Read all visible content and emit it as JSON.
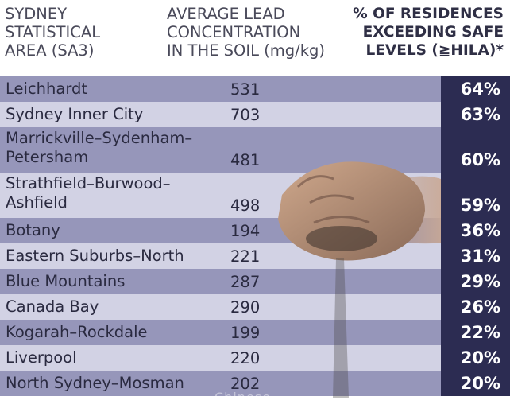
{
  "header": {
    "col1": "SYDNEY\nSTATISTICAL\nAREA (SA3)",
    "col2": "AVERAGE LEAD\nCONCENTRATION\nIN THE SOIL (mg/kg)",
    "col3": "% OF RESIDENCES\nEXCEEDING SAFE\nLEVELS (≧HILA)*"
  },
  "rows": [
    {
      "name": "Leichhardt",
      "value": "531",
      "percent": "64%"
    },
    {
      "name": "Sydney Inner City",
      "value": "703",
      "percent": "63%"
    },
    {
      "name": "Marrickville–Sydenham–\nPetersham",
      "value": "481",
      "percent": "60%"
    },
    {
      "name": "Strathfield–Burwood–\nAshfield",
      "value": "498",
      "percent": "59%"
    },
    {
      "name": "Botany",
      "value": "194",
      "percent": "36%"
    },
    {
      "name": "Eastern Suburbs–North",
      "value": "221",
      "percent": "31%"
    },
    {
      "name": "Blue Mountains",
      "value": "287",
      "percent": "29%"
    },
    {
      "name": "Canada Bay",
      "value": "290",
      "percent": "26%"
    },
    {
      "name": "Kogarah–Rockdale",
      "value": "199",
      "percent": "22%"
    },
    {
      "name": "Liverpool",
      "value": "220",
      "percent": "20%"
    },
    {
      "name": "North Sydney–Mosman",
      "value": "202",
      "percent": "20%"
    }
  ],
  "watermark": "Chinese",
  "colors": {
    "band_dark": "#9696ba",
    "band_light": "#d2d2e4",
    "percent_cell": "#2c2c52"
  },
  "photo_icon": "hands-holding-soil-photo"
}
